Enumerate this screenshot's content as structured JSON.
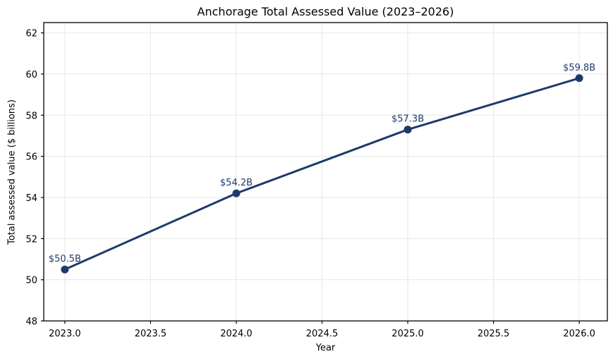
{
  "chart_data": {
    "type": "line",
    "title": "Anchorage Total Assessed Value (2023–2026)",
    "xlabel": "Year",
    "ylabel": "Total assessed value ($ billions)",
    "x": [
      2023,
      2024,
      2025,
      2026
    ],
    "y": [
      50.5,
      54.2,
      57.3,
      59.8
    ],
    "point_labels": [
      "$50.5B",
      "$54.2B",
      "$57.3B",
      "$59.8B"
    ],
    "xlim": [
      2022.877,
      2026.164
    ],
    "ylim": [
      48,
      62.5
    ],
    "x_ticks": [
      2023.0,
      2023.5,
      2024.0,
      2024.5,
      2025.0,
      2025.5,
      2026.0
    ],
    "x_tick_labels": [
      "2023.0",
      "2023.5",
      "2024.0",
      "2024.5",
      "2025.0",
      "2025.5",
      "2026.0"
    ],
    "y_ticks": [
      48,
      50,
      52,
      54,
      56,
      58,
      60,
      62
    ],
    "y_tick_labels": [
      "48",
      "50",
      "52",
      "54",
      "56",
      "58",
      "60",
      "62"
    ],
    "grid": true,
    "legend": "none",
    "colors": {
      "line": "#1e3a6c",
      "marker": "#1e3a6c",
      "point_label": "#1e3a6c",
      "grid": "#e7e7e7",
      "axis": "#000000",
      "tick_text": "#000000",
      "background": "#ffffff"
    }
  }
}
